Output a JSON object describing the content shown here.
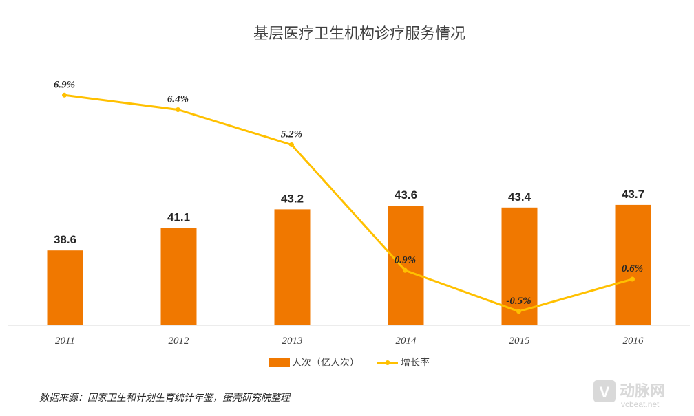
{
  "chart_data": {
    "type": "bar",
    "title": "基层医疗卫生机构诊疗服务情况",
    "categories": [
      "2011",
      "2012",
      "2013",
      "2014",
      "2015",
      "2016"
    ],
    "series": [
      {
        "name": "人次（亿人次）",
        "type": "bar",
        "values": [
          38.6,
          41.1,
          43.2,
          43.6,
          43.4,
          43.7
        ],
        "labels": [
          "38.6",
          "41.1",
          "43.2",
          "43.6",
          "43.4",
          "43.7"
        ],
        "color": "#F07800"
      },
      {
        "name": "增长率",
        "type": "line",
        "values": [
          6.9,
          6.4,
          5.2,
          0.9,
          -0.5,
          0.6
        ],
        "labels": [
          "6.9%",
          "6.4%",
          "5.2%",
          "0.9%",
          "-0.5%",
          "0.6%"
        ],
        "color": "#FFC000"
      }
    ],
    "legend_position": "bottom",
    "grid": false
  },
  "source": "数据来源：国家卫生和计划生育统计年鉴，蛋壳研究院整理",
  "watermark": {
    "name": "动脉网",
    "url": "vcbeat.net"
  }
}
